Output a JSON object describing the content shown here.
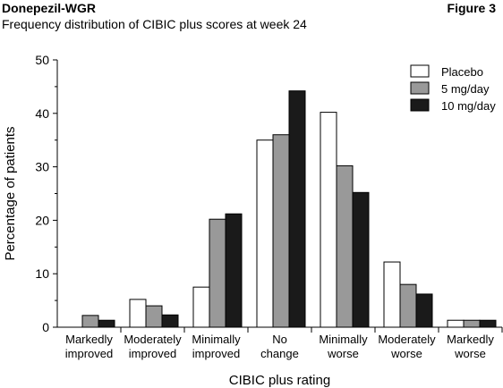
{
  "header": {
    "left_title": "Donepezil-WGR",
    "right_label": "Figure 3",
    "subtitle": "Frequency distribution of CIBIC plus scores at week 24"
  },
  "chart_data": {
    "type": "bar",
    "title": "Frequency distribution of CIBIC plus scores at week 24",
    "xlabel": "CIBIC plus rating",
    "ylabel": "Percentage of patients",
    "ylim": [
      0,
      50
    ],
    "yticks": [
      0,
      10,
      20,
      30,
      40,
      50
    ],
    "grid": false,
    "legend_position": "top-right",
    "categories": [
      [
        "Markedly",
        "improved"
      ],
      [
        "Moderately",
        "improved"
      ],
      [
        "Minimally",
        "improved"
      ],
      [
        "No",
        "change"
      ],
      [
        "Minimally",
        "worse"
      ],
      [
        "Moderately",
        "worse"
      ],
      [
        "Markedly",
        "worse"
      ]
    ],
    "series": [
      {
        "name": "Placebo",
        "color": "#ffffff",
        "values": [
          0,
          5.2,
          7.5,
          35,
          40.2,
          12.2,
          1.3
        ]
      },
      {
        "name": "5 mg/day",
        "color": "#999999",
        "values": [
          2.2,
          4.0,
          20.2,
          36,
          30.2,
          8.0,
          1.3
        ]
      },
      {
        "name": "10 mg/day",
        "color": "#1a1a1a",
        "values": [
          1.3,
          2.3,
          21.2,
          44.2,
          25.2,
          6.2,
          1.3
        ]
      }
    ]
  }
}
